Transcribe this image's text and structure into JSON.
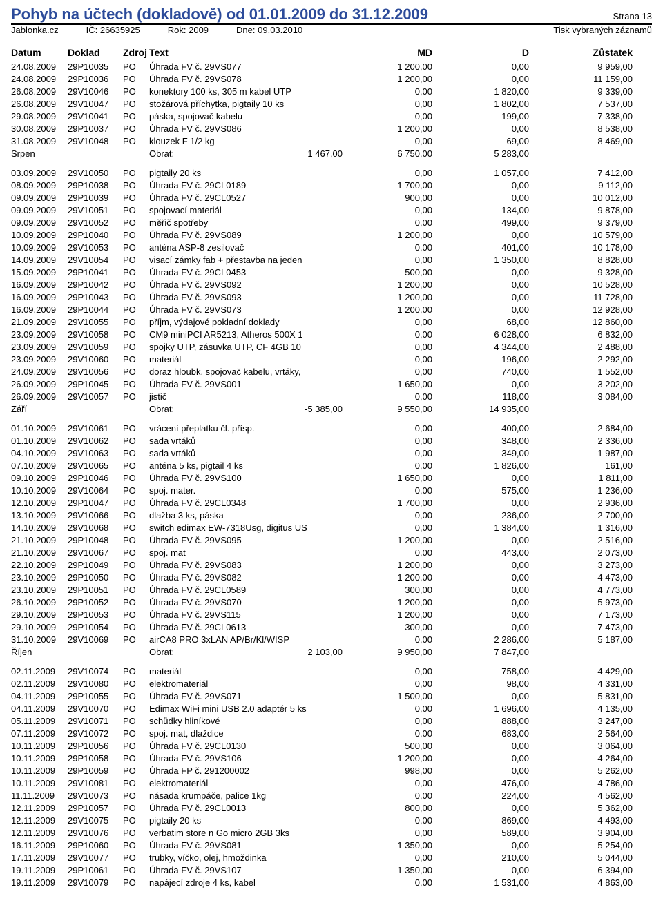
{
  "header": {
    "title": "Pohyb na účtech (dokladově) od 01.01.2009 do 31.12.2009",
    "page": "Strana 13",
    "company": "Jablonka.cz",
    "ic_label": "IČ:",
    "ic": "26635925",
    "year_label": "Rok:",
    "year": "2009",
    "dne_label": "Dne:",
    "dne": "09.03.2010",
    "print_note": "Tisk vybraných záznamů"
  },
  "columns": {
    "datum": "Datum",
    "doklad": "Doklad",
    "zdroj": "Zdroj",
    "text": "Text",
    "md": "MD",
    "d": "D",
    "zustatek": "Zůstatek"
  },
  "groups": [
    {
      "label": "Srpen",
      "obrat_label": "Obrat:",
      "obrat": "1 467,00",
      "md": "6 750,00",
      "d": "5 283,00",
      "rows": [
        {
          "datum": "24.08.2009",
          "doklad": "29P10035",
          "zdroj": "PO",
          "text": "Úhrada FV č. 29VS077",
          "md": "1 200,00",
          "d": "0,00",
          "zust": "9 959,00"
        },
        {
          "datum": "24.08.2009",
          "doklad": "29P10036",
          "zdroj": "PO",
          "text": "Úhrada FV č. 29VS078",
          "md": "1 200,00",
          "d": "0,00",
          "zust": "11 159,00"
        },
        {
          "datum": "26.08.2009",
          "doklad": "29V10046",
          "zdroj": "PO",
          "text": "konektory 100 ks, 305 m kabel UTP",
          "md": "0,00",
          "d": "1 820,00",
          "zust": "9 339,00"
        },
        {
          "datum": "26.08.2009",
          "doklad": "29V10047",
          "zdroj": "PO",
          "text": "stožárová příchytka, pigtaily 10 ks",
          "md": "0,00",
          "d": "1 802,00",
          "zust": "7 537,00"
        },
        {
          "datum": "29.08.2009",
          "doklad": "29V10041",
          "zdroj": "PO",
          "text": "páska, spojovač kabelu",
          "md": "0,00",
          "d": "199,00",
          "zust": "7 338,00"
        },
        {
          "datum": "30.08.2009",
          "doklad": "29P10037",
          "zdroj": "PO",
          "text": "Úhrada FV č. 29VS086",
          "md": "1 200,00",
          "d": "0,00",
          "zust": "8 538,00"
        },
        {
          "datum": "31.08.2009",
          "doklad": "29V10048",
          "zdroj": "PO",
          "text": "klouzek F 1/2 kg",
          "md": "0,00",
          "d": "69,00",
          "zust": "8 469,00"
        }
      ]
    },
    {
      "label": "Září",
      "obrat_label": "Obrat:",
      "obrat": "-5 385,00",
      "md": "9 550,00",
      "d": "14 935,00",
      "rows": [
        {
          "datum": "03.09.2009",
          "doklad": "29V10050",
          "zdroj": "PO",
          "text": "pigtaily 20 ks",
          "md": "0,00",
          "d": "1 057,00",
          "zust": "7 412,00"
        },
        {
          "datum": "08.09.2009",
          "doklad": "29P10038",
          "zdroj": "PO",
          "text": "Úhrada FV č. 29CL0189",
          "md": "1 700,00",
          "d": "0,00",
          "zust": "9 112,00"
        },
        {
          "datum": "09.09.2009",
          "doklad": "29P10039",
          "zdroj": "PO",
          "text": "Úhrada FV č. 29CL0527",
          "md": "900,00",
          "d": "0,00",
          "zust": "10 012,00"
        },
        {
          "datum": "09.09.2009",
          "doklad": "29V10051",
          "zdroj": "PO",
          "text": "spojovací materiál",
          "md": "0,00",
          "d": "134,00",
          "zust": "9 878,00"
        },
        {
          "datum": "09.09.2009",
          "doklad": "29V10052",
          "zdroj": "PO",
          "text": "měřič spotřeby",
          "md": "0,00",
          "d": "499,00",
          "zust": "9 379,00"
        },
        {
          "datum": "10.09.2009",
          "doklad": "29P10040",
          "zdroj": "PO",
          "text": "Úhrada FV č. 29VS089",
          "md": "1 200,00",
          "d": "0,00",
          "zust": "10 579,00"
        },
        {
          "datum": "10.09.2009",
          "doklad": "29V10053",
          "zdroj": "PO",
          "text": "anténa ASP-8 zesilovač",
          "md": "0,00",
          "d": "401,00",
          "zust": "10 178,00"
        },
        {
          "datum": "14.09.2009",
          "doklad": "29V10054",
          "zdroj": "PO",
          "text": "visací zámky fab + přestavba na jeden",
          "md": "0,00",
          "d": "1 350,00",
          "zust": "8 828,00"
        },
        {
          "datum": "15.09.2009",
          "doklad": "29P10041",
          "zdroj": "PO",
          "text": "Úhrada FV č. 29CL0453",
          "md": "500,00",
          "d": "0,00",
          "zust": "9 328,00"
        },
        {
          "datum": "16.09.2009",
          "doklad": "29P10042",
          "zdroj": "PO",
          "text": "Úhrada FV č. 29VS092",
          "md": "1 200,00",
          "d": "0,00",
          "zust": "10 528,00"
        },
        {
          "datum": "16.09.2009",
          "doklad": "29P10043",
          "zdroj": "PO",
          "text": "Úhrada FV č. 29VS093",
          "md": "1 200,00",
          "d": "0,00",
          "zust": "11 728,00"
        },
        {
          "datum": "16.09.2009",
          "doklad": "29P10044",
          "zdroj": "PO",
          "text": "Úhrada FV č. 29VS073",
          "md": "1 200,00",
          "d": "0,00",
          "zust": "12 928,00"
        },
        {
          "datum": "21.09.2009",
          "doklad": "29V10055",
          "zdroj": "PO",
          "text": "příjm, výdajové pokladní doklady",
          "md": "0,00",
          "d": "68,00",
          "zust": "12 860,00"
        },
        {
          "datum": "23.09.2009",
          "doklad": "29V10058",
          "zdroj": "PO",
          "text": "CM9 miniPCI AR5213, Atheros 500X 1",
          "md": "0,00",
          "d": "6 028,00",
          "zust": "6 832,00"
        },
        {
          "datum": "23.09.2009",
          "doklad": "29V10059",
          "zdroj": "PO",
          "text": "spojky UTP, zásuvka UTP, CF 4GB 10",
          "md": "0,00",
          "d": "4 344,00",
          "zust": "2 488,00"
        },
        {
          "datum": "23.09.2009",
          "doklad": "29V10060",
          "zdroj": "PO",
          "text": "materiál",
          "md": "0,00",
          "d": "196,00",
          "zust": "2 292,00"
        },
        {
          "datum": "24.09.2009",
          "doklad": "29V10056",
          "zdroj": "PO",
          "text": "doraz hloubk, spojovač kabelu, vrtáky,",
          "md": "0,00",
          "d": "740,00",
          "zust": "1 552,00"
        },
        {
          "datum": "26.09.2009",
          "doklad": "29P10045",
          "zdroj": "PO",
          "text": "Úhrada FV č. 29VS001",
          "md": "1 650,00",
          "d": "0,00",
          "zust": "3 202,00"
        },
        {
          "datum": "26.09.2009",
          "doklad": "29V10057",
          "zdroj": "PO",
          "text": "jistič",
          "md": "0,00",
          "d": "118,00",
          "zust": "3 084,00"
        }
      ]
    },
    {
      "label": "Říjen",
      "obrat_label": "Obrat:",
      "obrat": "2 103,00",
      "md": "9 950,00",
      "d": "7 847,00",
      "rows": [
        {
          "datum": "01.10.2009",
          "doklad": "29V10061",
          "zdroj": "PO",
          "text": "vrácení přeplatku čl. přísp.",
          "md": "0,00",
          "d": "400,00",
          "zust": "2 684,00"
        },
        {
          "datum": "01.10.2009",
          "doklad": "29V10062",
          "zdroj": "PO",
          "text": "sada vrtáků",
          "md": "0,00",
          "d": "348,00",
          "zust": "2 336,00"
        },
        {
          "datum": "04.10.2009",
          "doklad": "29V10063",
          "zdroj": "PO",
          "text": "sada vrtáků",
          "md": "0,00",
          "d": "349,00",
          "zust": "1 987,00"
        },
        {
          "datum": "07.10.2009",
          "doklad": "29V10065",
          "zdroj": "PO",
          "text": "anténa 5 ks, pigtail 4 ks",
          "md": "0,00",
          "d": "1 826,00",
          "zust": "161,00"
        },
        {
          "datum": "09.10.2009",
          "doklad": "29P10046",
          "zdroj": "PO",
          "text": "Úhrada FV č. 29VS100",
          "md": "1 650,00",
          "d": "0,00",
          "zust": "1 811,00"
        },
        {
          "datum": "10.10.2009",
          "doklad": "29V10064",
          "zdroj": "PO",
          "text": "spoj. mater.",
          "md": "0,00",
          "d": "575,00",
          "zust": "1 236,00"
        },
        {
          "datum": "12.10.2009",
          "doklad": "29P10047",
          "zdroj": "PO",
          "text": "Úhrada FV č. 29CL0348",
          "md": "1 700,00",
          "d": "0,00",
          "zust": "2 936,00"
        },
        {
          "datum": "13.10.2009",
          "doklad": "29V10066",
          "zdroj": "PO",
          "text": "dlažba 3 ks, páska",
          "md": "0,00",
          "d": "236,00",
          "zust": "2 700,00"
        },
        {
          "datum": "14.10.2009",
          "doklad": "29V10068",
          "zdroj": "PO",
          "text": "switch edimax EW-7318Usg, digitus US",
          "md": "0,00",
          "d": "1 384,00",
          "zust": "1 316,00"
        },
        {
          "datum": "21.10.2009",
          "doklad": "29P10048",
          "zdroj": "PO",
          "text": "Úhrada FV č. 29VS095",
          "md": "1 200,00",
          "d": "0,00",
          "zust": "2 516,00"
        },
        {
          "datum": "21.10.2009",
          "doklad": "29V10067",
          "zdroj": "PO",
          "text": "spoj. mat",
          "md": "0,00",
          "d": "443,00",
          "zust": "2 073,00"
        },
        {
          "datum": "22.10.2009",
          "doklad": "29P10049",
          "zdroj": "PO",
          "text": "Úhrada FV č. 29VS083",
          "md": "1 200,00",
          "d": "0,00",
          "zust": "3 273,00"
        },
        {
          "datum": "23.10.2009",
          "doklad": "29P10050",
          "zdroj": "PO",
          "text": "Úhrada FV č. 29VS082",
          "md": "1 200,00",
          "d": "0,00",
          "zust": "4 473,00"
        },
        {
          "datum": "23.10.2009",
          "doklad": "29P10051",
          "zdroj": "PO",
          "text": "Úhrada FV č. 29CL0589",
          "md": "300,00",
          "d": "0,00",
          "zust": "4 773,00"
        },
        {
          "datum": "26.10.2009",
          "doklad": "29P10052",
          "zdroj": "PO",
          "text": "Úhrada FV č. 29VS070",
          "md": "1 200,00",
          "d": "0,00",
          "zust": "5 973,00"
        },
        {
          "datum": "29.10.2009",
          "doklad": "29P10053",
          "zdroj": "PO",
          "text": "Úhrada FV č. 29VS115",
          "md": "1 200,00",
          "d": "0,00",
          "zust": "7 173,00"
        },
        {
          "datum": "29.10.2009",
          "doklad": "29P10054",
          "zdroj": "PO",
          "text": "Úhrada FV č. 29CL0613",
          "md": "300,00",
          "d": "0,00",
          "zust": "7 473,00"
        },
        {
          "datum": "31.10.2009",
          "doklad": "29V10069",
          "zdroj": "PO",
          "text": "airCA8 PRO 3xLAN AP/Br/Kl/WISP",
          "md": "0,00",
          "d": "2 286,00",
          "zust": "5 187,00"
        }
      ]
    },
    {
      "label": null,
      "rows": [
        {
          "datum": "02.11.2009",
          "doklad": "29V10074",
          "zdroj": "PO",
          "text": "materiál",
          "md": "0,00",
          "d": "758,00",
          "zust": "4 429,00"
        },
        {
          "datum": "02.11.2009",
          "doklad": "29V10080",
          "zdroj": "PO",
          "text": "elektromateriál",
          "md": "0,00",
          "d": "98,00",
          "zust": "4 331,00"
        },
        {
          "datum": "04.11.2009",
          "doklad": "29P10055",
          "zdroj": "PO",
          "text": "Úhrada FV č. 29VS071",
          "md": "1 500,00",
          "d": "0,00",
          "zust": "5 831,00"
        },
        {
          "datum": "04.11.2009",
          "doklad": "29V10070",
          "zdroj": "PO",
          "text": "Edimax WiFi mini USB 2.0 adaptér 5 ks",
          "md": "0,00",
          "d": "1 696,00",
          "zust": "4 135,00"
        },
        {
          "datum": "05.11.2009",
          "doklad": "29V10071",
          "zdroj": "PO",
          "text": "schůdky hliníkové",
          "md": "0,00",
          "d": "888,00",
          "zust": "3 247,00"
        },
        {
          "datum": "07.11.2009",
          "doklad": "29V10072",
          "zdroj": "PO",
          "text": "spoj. mat, dlaždice",
          "md": "0,00",
          "d": "683,00",
          "zust": "2 564,00"
        },
        {
          "datum": "10.11.2009",
          "doklad": "29P10056",
          "zdroj": "PO",
          "text": "Úhrada FV č. 29CL0130",
          "md": "500,00",
          "d": "0,00",
          "zust": "3 064,00"
        },
        {
          "datum": "10.11.2009",
          "doklad": "29P10058",
          "zdroj": "PO",
          "text": "Úhrada FV č. 29VS106",
          "md": "1 200,00",
          "d": "0,00",
          "zust": "4 264,00"
        },
        {
          "datum": "10.11.2009",
          "doklad": "29P10059",
          "zdroj": "PO",
          "text": "Úhrada FP č. 291200002",
          "md": "998,00",
          "d": "0,00",
          "zust": "5 262,00"
        },
        {
          "datum": "10.11.2009",
          "doklad": "29V10081",
          "zdroj": "PO",
          "text": "elektromateriál",
          "md": "0,00",
          "d": "476,00",
          "zust": "4 786,00"
        },
        {
          "datum": "11.11.2009",
          "doklad": "29V10073",
          "zdroj": "PO",
          "text": "násada krumpáče, palice 1kg",
          "md": "0,00",
          "d": "224,00",
          "zust": "4 562,00"
        },
        {
          "datum": "12.11.2009",
          "doklad": "29P10057",
          "zdroj": "PO",
          "text": "Úhrada FV č. 29CL0013",
          "md": "800,00",
          "d": "0,00",
          "zust": "5 362,00"
        },
        {
          "datum": "12.11.2009",
          "doklad": "29V10075",
          "zdroj": "PO",
          "text": "pigtaily 20 ks",
          "md": "0,00",
          "d": "869,00",
          "zust": "4 493,00"
        },
        {
          "datum": "12.11.2009",
          "doklad": "29V10076",
          "zdroj": "PO",
          "text": "verbatim store n Go micro 2GB 3ks",
          "md": "0,00",
          "d": "589,00",
          "zust": "3 904,00"
        },
        {
          "datum": "16.11.2009",
          "doklad": "29P10060",
          "zdroj": "PO",
          "text": "Úhrada FV č. 29VS081",
          "md": "1 350,00",
          "d": "0,00",
          "zust": "5 254,00"
        },
        {
          "datum": "17.11.2009",
          "doklad": "29V10077",
          "zdroj": "PO",
          "text": "trubky, víčko, olej, hmoždinka",
          "md": "0,00",
          "d": "210,00",
          "zust": "5 044,00"
        },
        {
          "datum": "19.11.2009",
          "doklad": "29P10061",
          "zdroj": "PO",
          "text": "Úhrada FV č. 29VS107",
          "md": "1 350,00",
          "d": "0,00",
          "zust": "6 394,00"
        },
        {
          "datum": "19.11.2009",
          "doklad": "29V10079",
          "zdroj": "PO",
          "text": "napájecí zdroje 4 ks, kabel",
          "md": "0,00",
          "d": "1 531,00",
          "zust": "4 863,00"
        }
      ]
    }
  ]
}
